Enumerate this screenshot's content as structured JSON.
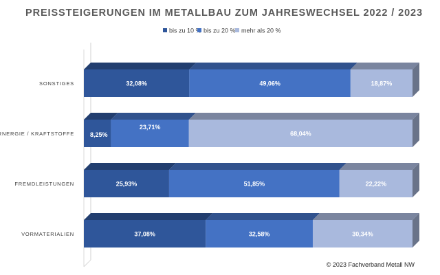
{
  "chart_data": {
    "type": "bar",
    "orientation": "horizontal",
    "stacked": "percent",
    "three_d": true,
    "title": "PREISSTEIGERUNGEN IM METALLBAU ZUM JAHRESWECHSEL 2022 / 2023",
    "categories": [
      "SONSTIGES",
      "ERNERGIE / KRAFTSTOFFE",
      "FREMDLEISTUNGEN",
      "VORMATERIALIEN"
    ],
    "series": [
      {
        "name": "bis zu 10 %",
        "color": "#2f569a",
        "values": [
          32.08,
          8.25,
          25.93,
          37.08
        ],
        "labels": [
          "32,08%",
          "8,25%",
          "25,93%",
          "37,08%"
        ]
      },
      {
        "name": "bis zu 20 %",
        "color": "#4472c4",
        "values": [
          49.06,
          23.71,
          51.85,
          32.58
        ],
        "labels": [
          "49,06%",
          "23,71%",
          "51,85%",
          "32,58%"
        ]
      },
      {
        "name": "mehr als 20 %",
        "color": "#a9b9dd",
        "values": [
          18.87,
          68.04,
          22.22,
          30.34
        ],
        "labels": [
          "18,87%",
          "68,04%",
          "22,22%",
          "30,34%"
        ]
      }
    ],
    "xlim": [
      0,
      100
    ],
    "legend": "top-center",
    "grid": false
  },
  "footer": {
    "copyright": "© 2023 Fachverband Metall NW"
  }
}
